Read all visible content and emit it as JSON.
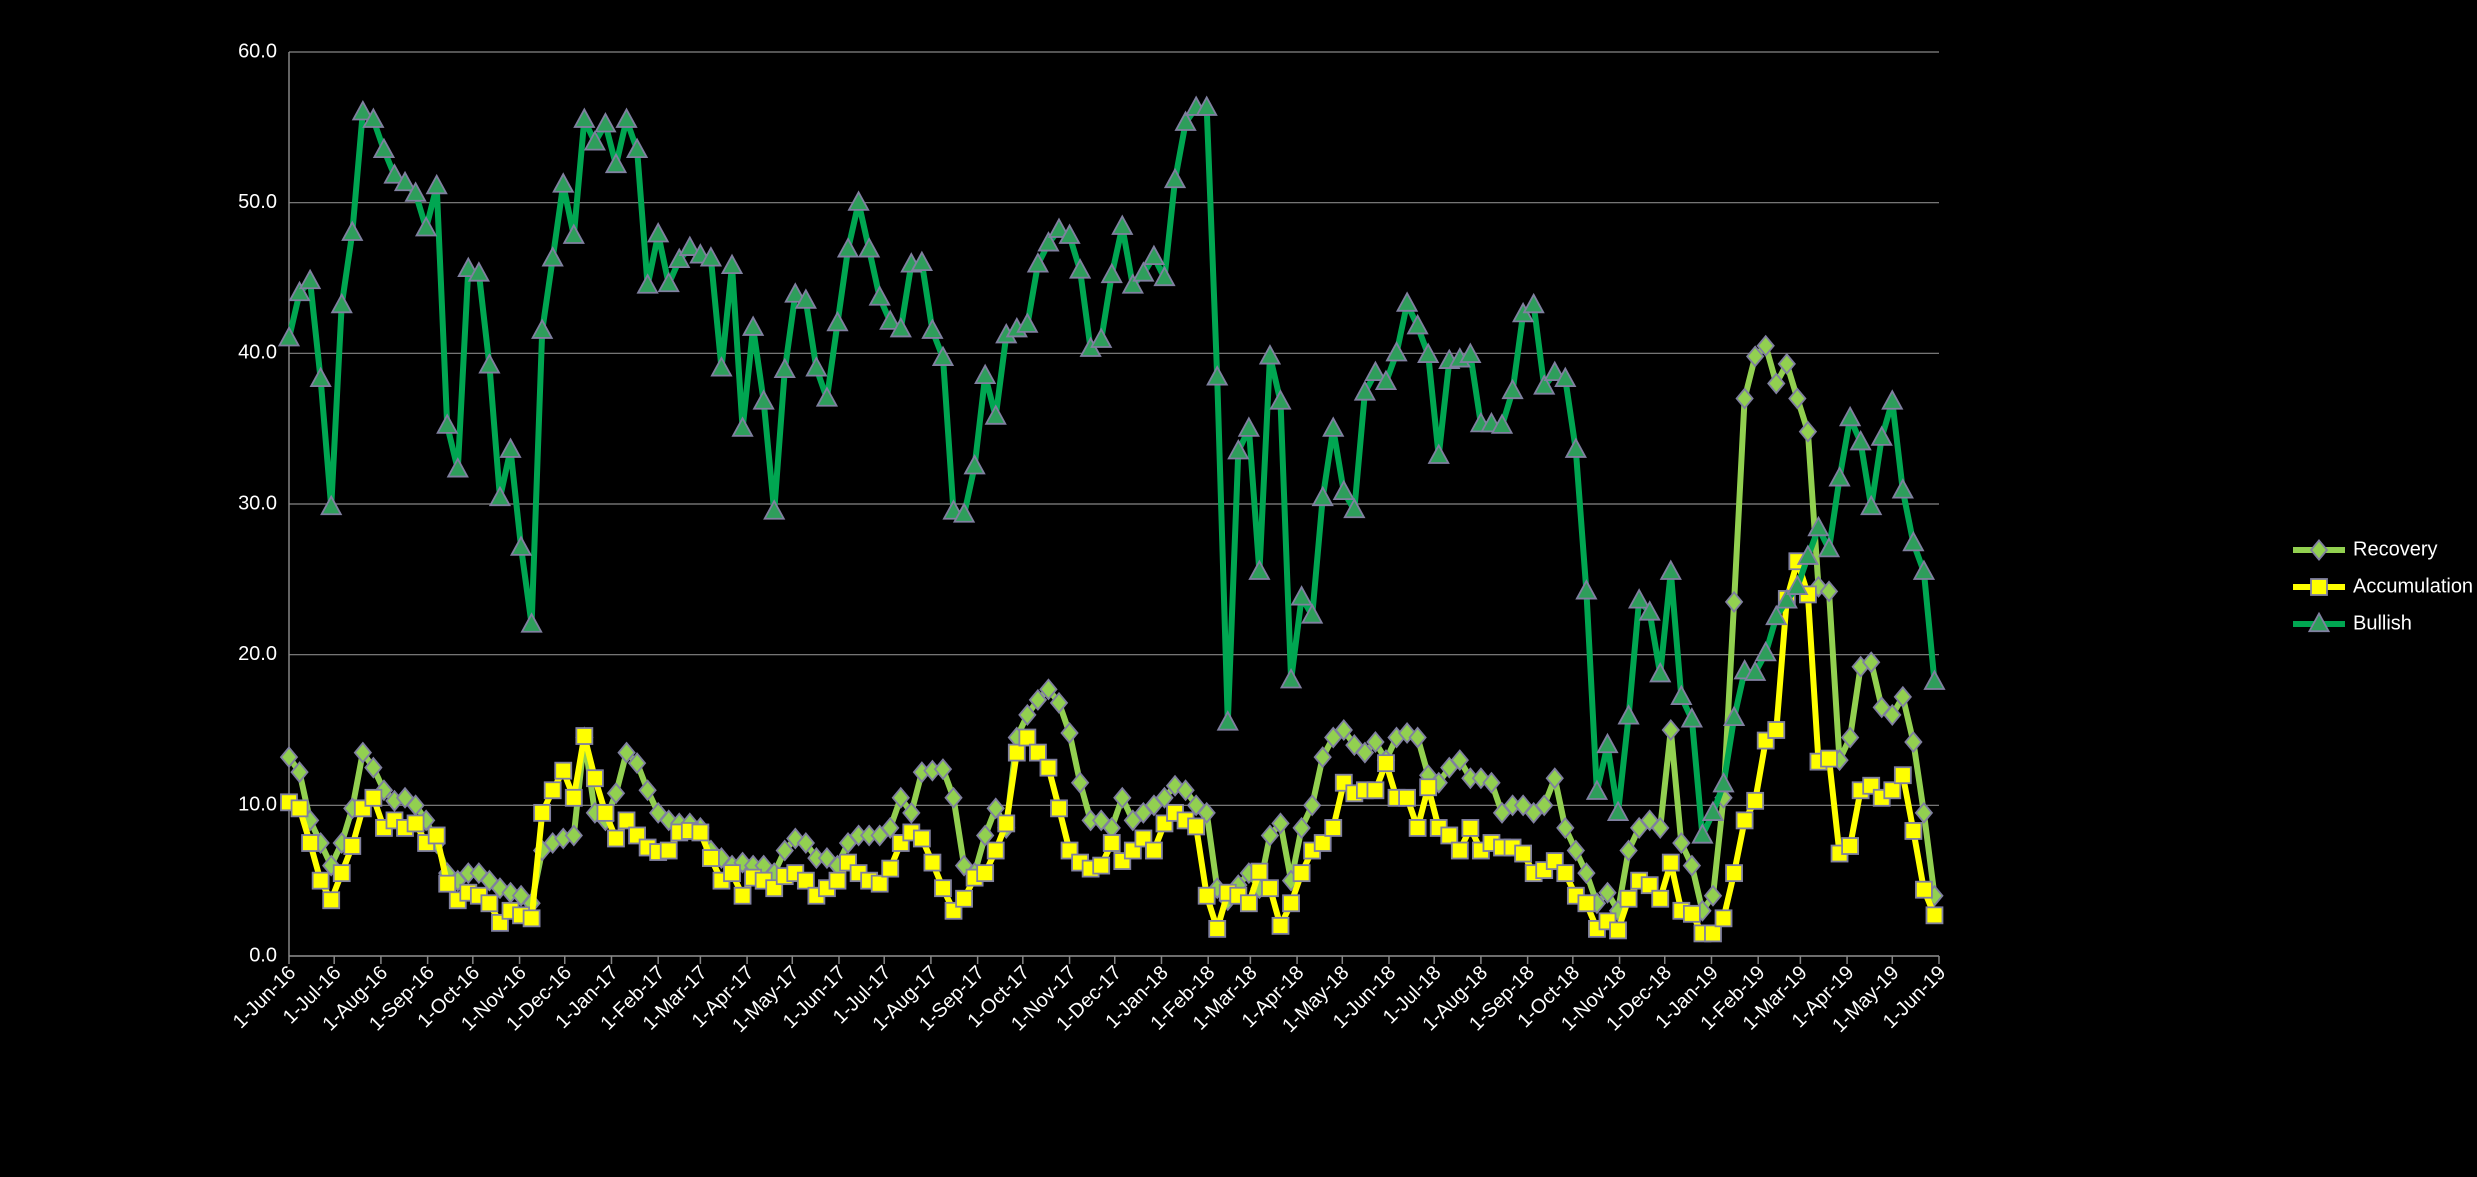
{
  "chart_data": {
    "type": "line",
    "x": [
      "2016-06-01",
      "2016-06-08",
      "2016-06-15",
      "2016-06-22",
      "2016-06-29",
      "2016-07-06",
      "2016-07-13",
      "2016-07-20",
      "2016-07-27",
      "2016-08-03",
      "2016-08-10",
      "2016-08-17",
      "2016-08-24",
      "2016-08-31",
      "2016-09-07",
      "2016-09-14",
      "2016-09-21",
      "2016-09-28",
      "2016-10-05",
      "2016-10-12",
      "2016-10-19",
      "2016-10-26",
      "2016-11-02",
      "2016-11-09",
      "2016-11-16",
      "2016-11-23",
      "2016-11-30",
      "2016-12-07",
      "2016-12-14",
      "2016-12-21",
      "2016-12-28",
      "2017-01-04",
      "2017-01-11",
      "2017-01-18",
      "2017-01-25",
      "2017-02-01",
      "2017-02-08",
      "2017-02-15",
      "2017-02-22",
      "2017-03-01",
      "2017-03-08",
      "2017-03-15",
      "2017-03-22",
      "2017-03-29",
      "2017-04-05",
      "2017-04-12",
      "2017-04-19",
      "2017-04-26",
      "2017-05-03",
      "2017-05-10",
      "2017-05-17",
      "2017-05-24",
      "2017-05-31",
      "2017-06-07",
      "2017-06-14",
      "2017-06-21",
      "2017-06-28",
      "2017-07-05",
      "2017-07-12",
      "2017-07-19",
      "2017-07-26",
      "2017-08-02",
      "2017-08-09",
      "2017-08-16",
      "2017-08-23",
      "2017-08-30",
      "2017-09-06",
      "2017-09-13",
      "2017-09-20",
      "2017-09-27",
      "2017-10-04",
      "2017-10-11",
      "2017-10-18",
      "2017-10-25",
      "2017-11-01",
      "2017-11-08",
      "2017-11-15",
      "2017-11-22",
      "2017-11-29",
      "2017-12-06",
      "2017-12-13",
      "2017-12-20",
      "2017-12-27",
      "2018-01-03",
      "2018-01-10",
      "2018-01-17",
      "2018-01-24",
      "2018-01-31",
      "2018-02-07",
      "2018-02-14",
      "2018-02-21",
      "2018-02-28",
      "2018-03-07",
      "2018-03-14",
      "2018-03-21",
      "2018-03-28",
      "2018-04-04",
      "2018-04-11",
      "2018-04-18",
      "2018-04-25",
      "2018-05-02",
      "2018-05-09",
      "2018-05-16",
      "2018-05-23",
      "2018-05-30",
      "2018-06-06",
      "2018-06-13",
      "2018-06-20",
      "2018-06-27",
      "2018-07-04",
      "2018-07-11",
      "2018-07-18",
      "2018-07-25",
      "2018-08-01",
      "2018-08-08",
      "2018-08-15",
      "2018-08-22",
      "2018-08-29",
      "2018-09-05",
      "2018-09-12",
      "2018-09-19",
      "2018-09-26",
      "2018-10-03",
      "2018-10-10",
      "2018-10-17",
      "2018-10-24",
      "2018-10-31",
      "2018-11-07",
      "2018-11-14",
      "2018-11-21",
      "2018-11-28",
      "2018-12-05",
      "2018-12-12",
      "2018-12-19",
      "2018-12-26",
      "2019-01-02",
      "2019-01-09",
      "2019-01-16",
      "2019-01-23",
      "2019-01-30",
      "2019-02-06",
      "2019-02-13",
      "2019-02-20",
      "2019-02-27",
      "2019-03-06",
      "2019-03-13",
      "2019-03-20",
      "2019-03-27",
      "2019-04-03",
      "2019-04-10",
      "2019-04-17",
      "2019-04-24",
      "2019-05-01",
      "2019-05-08",
      "2019-05-15",
      "2019-05-22",
      "2019-05-29"
    ],
    "series": [
      {
        "name": "Recovery",
        "color": "#92d050",
        "marker": "diamond",
        "values": [
          13.2,
          12.2,
          9,
          7.5,
          6,
          7.5,
          9.8,
          13.5,
          12.5,
          11,
          10.3,
          10.5,
          10,
          9,
          7.5,
          5.5,
          5,
          5.5,
          5.5,
          5,
          4.5,
          4.2,
          4,
          3.5,
          7,
          7.5,
          7.8,
          8,
          14.5,
          9.5,
          9,
          10.8,
          13.5,
          12.8,
          11,
          9.5,
          9,
          8.8,
          8.8,
          8.5,
          7,
          6.5,
          6,
          6.2,
          6,
          6,
          5.5,
          7,
          7.8,
          7.5,
          6.5,
          6.5,
          6,
          7.5,
          8,
          8,
          8,
          8.5,
          10.5,
          9.5,
          12.2,
          12.3,
          12.4,
          10.5,
          6,
          5.5,
          8,
          9.8,
          8.5,
          14.5,
          16,
          17,
          17.7,
          16.8,
          14.8,
          11.5,
          9,
          9,
          8.5,
          10.5,
          9,
          9.5,
          10,
          10.5,
          11.3,
          11,
          10,
          9.5,
          4.5,
          3.7,
          4.7,
          5.5,
          4.5,
          8,
          8.8,
          5,
          8.5,
          10,
          13.2,
          14.5,
          15,
          14,
          13.5,
          14.2,
          13,
          14.5,
          14.8,
          14.5,
          12,
          11.5,
          12.5,
          13,
          11.8,
          11.8,
          11.5,
          9.5,
          10,
          10,
          9.5,
          10,
          11.8,
          8.5,
          7,
          5.5,
          3.5,
          4.2,
          3,
          7,
          8.5,
          9,
          8.5,
          15,
          7.5,
          6,
          3,
          4,
          10.5,
          23.5,
          37,
          39.8,
          40.5,
          38,
          39.3,
          37,
          34.8,
          24.5,
          24.2,
          13,
          14.5,
          19.2,
          19.5,
          16.5,
          16,
          17.2,
          14.2,
          9.5,
          4
        ]
      },
      {
        "name": "Accumulation",
        "color": "#ffff00",
        "marker": "square",
        "values": [
          10.2,
          9.8,
          7.5,
          5,
          3.7,
          5.5,
          7.3,
          9.8,
          10.5,
          8.5,
          9,
          8.5,
          8.8,
          7.5,
          8,
          4.8,
          3.7,
          4.2,
          4,
          3.5,
          2.2,
          3,
          2.7,
          2.5,
          9.5,
          11,
          12.3,
          10.5,
          14.6,
          11.8,
          9.5,
          7.8,
          9,
          8,
          7.2,
          6.9,
          7,
          8.2,
          8.3,
          8.2,
          6.5,
          5,
          5.5,
          4,
          5.2,
          5,
          4.5,
          5.3,
          5.5,
          5,
          4,
          4.5,
          5,
          6.2,
          5.5,
          5,
          4.8,
          5.8,
          7.5,
          8.2,
          7.8,
          6.2,
          4.5,
          3,
          3.8,
          5.2,
          5.5,
          7,
          8.8,
          13.5,
          14.5,
          13.5,
          12.5,
          9.8,
          7,
          6.2,
          5.8,
          6,
          7.5,
          6.3,
          7,
          7.8,
          7,
          8.8,
          9.5,
          9,
          8.6,
          4,
          1.8,
          4.2,
          4,
          3.5,
          5.6,
          4.5,
          2,
          3.5,
          5.5,
          7,
          7.5,
          8.5,
          11.5,
          10.8,
          11,
          11,
          12.8,
          10.5,
          10.5,
          8.5,
          11.2,
          8.5,
          8,
          7,
          8.5,
          7,
          7.5,
          7.2,
          7.2,
          6.8,
          5.5,
          5.7,
          6.3,
          5.5,
          4,
          3.5,
          1.8,
          2.3,
          1.7,
          3.8,
          5,
          4.7,
          3.8,
          6.2,
          3,
          2.8,
          1.5,
          1.5,
          2.5,
          5.5,
          9,
          10.3,
          14.3,
          15,
          23.7,
          26.2,
          24,
          12.9,
          13.1,
          6.8,
          7.3,
          11,
          11.3,
          10.5,
          11,
          12,
          8.3,
          4.4,
          2.7
        ]
      },
      {
        "name": "Bullish",
        "color": "#00a651",
        "marker": "triangle",
        "values": [
          41,
          44,
          44.8,
          38.3,
          29.8,
          43.2,
          48,
          56,
          55.5,
          53.5,
          51.8,
          51.3,
          50.6,
          48.3,
          51.1,
          35.2,
          32.3,
          45.6,
          45.3,
          39.2,
          30.4,
          33.6,
          27.1,
          22,
          41.5,
          46.3,
          51.2,
          47.8,
          55.5,
          54,
          55.2,
          52.5,
          55.5,
          53.5,
          44.5,
          47.9,
          44.6,
          46.2,
          47,
          46.5,
          46.3,
          39,
          45.8,
          35,
          41.7,
          36.8,
          29.5,
          38.9,
          43.9,
          43.5,
          39,
          37,
          42,
          46.9,
          50,
          46.9,
          43.7,
          42.1,
          41.6,
          45.9,
          46,
          41.5,
          39.7,
          29.5,
          29.3,
          32.5,
          38.5,
          35.8,
          41.2,
          41.6,
          41.9,
          45.9,
          47.3,
          48.2,
          47.8,
          45.5,
          40.3,
          40.9,
          45.2,
          48.4,
          44.5,
          45.3,
          46.4,
          45,
          51.5,
          55.3,
          56.3,
          56.3,
          38.4,
          15.5,
          33.5,
          35,
          25.5,
          39.8,
          36.8,
          18.3,
          23.8,
          22.6,
          30.4,
          35,
          30.8,
          29.6,
          37.4,
          38.7,
          38.1,
          40,
          43.3,
          41.8,
          39.9,
          33.2,
          39.5,
          39.6,
          39.9,
          35.3,
          35.3,
          35.2,
          37.5,
          42.6,
          43.2,
          37.8,
          38.7,
          38.3,
          33.6,
          24.2,
          10.9,
          14,
          9.5,
          15.9,
          23.6,
          22.8,
          18.7,
          25.5,
          17.2,
          15.7,
          8,
          9.5,
          11.4,
          15.8,
          18.9,
          18.8,
          20.1,
          22.5,
          23.6,
          24.5,
          26.5,
          28.4,
          27,
          31.7,
          35.7,
          34.1,
          29.8,
          34.4,
          36.8,
          30.9,
          27.4,
          25.5,
          18.2
        ]
      }
    ],
    "ylim": [
      0,
      60
    ],
    "yticks": [
      {
        "value": 0,
        "label": "0.0"
      },
      {
        "value": 10,
        "label": "10.0"
      },
      {
        "value": 20,
        "label": "20.0"
      },
      {
        "value": 30,
        "label": "30.0"
      },
      {
        "value": 40,
        "label": "40.0"
      },
      {
        "value": 50,
        "label": "50.0"
      },
      {
        "value": 60,
        "label": "60.0"
      }
    ],
    "xlim": [
      "2016-06-01",
      "2019-06-01"
    ],
    "xticks": [
      {
        "value": "2016-06-01",
        "label": "1-Jun-16"
      },
      {
        "value": "2016-07-01",
        "label": "1-Jul-16"
      },
      {
        "value": "2016-08-01",
        "label": "1-Aug-16"
      },
      {
        "value": "2016-09-01",
        "label": "1-Sep-16"
      },
      {
        "value": "2016-10-01",
        "label": "1-Oct-16"
      },
      {
        "value": "2016-11-01",
        "label": "1-Nov-16"
      },
      {
        "value": "2016-12-01",
        "label": "1-Dec-16"
      },
      {
        "value": "2017-01-01",
        "label": "1-Jan-17"
      },
      {
        "value": "2017-02-01",
        "label": "1-Feb-17"
      },
      {
        "value": "2017-03-01",
        "label": "1-Mar-17"
      },
      {
        "value": "2017-04-01",
        "label": "1-Apr-17"
      },
      {
        "value": "2017-05-01",
        "label": "1-May-17"
      },
      {
        "value": "2017-06-01",
        "label": "1-Jun-17"
      },
      {
        "value": "2017-07-01",
        "label": "1-Jul-17"
      },
      {
        "value": "2017-08-01",
        "label": "1-Aug-17"
      },
      {
        "value": "2017-09-01",
        "label": "1-Sep-17"
      },
      {
        "value": "2017-10-01",
        "label": "1-Oct-17"
      },
      {
        "value": "2017-11-01",
        "label": "1-Nov-17"
      },
      {
        "value": "2017-12-01",
        "label": "1-Dec-17"
      },
      {
        "value": "2018-01-01",
        "label": "1-Jan-18"
      },
      {
        "value": "2018-02-01",
        "label": "1-Feb-18"
      },
      {
        "value": "2018-03-01",
        "label": "1-Mar-18"
      },
      {
        "value": "2018-04-01",
        "label": "1-Apr-18"
      },
      {
        "value": "2018-05-01",
        "label": "1-May-18"
      },
      {
        "value": "2018-06-01",
        "label": "1-Jun-18"
      },
      {
        "value": "2018-07-01",
        "label": "1-Jul-18"
      },
      {
        "value": "2018-08-01",
        "label": "1-Aug-18"
      },
      {
        "value": "2018-09-01",
        "label": "1-Sep-18"
      },
      {
        "value": "2018-10-01",
        "label": "1-Oct-18"
      },
      {
        "value": "2018-11-01",
        "label": "1-Nov-18"
      },
      {
        "value": "2018-12-01",
        "label": "1-Dec-18"
      },
      {
        "value": "2019-01-01",
        "label": "1-Jan-19"
      },
      {
        "value": "2019-02-01",
        "label": "1-Feb-19"
      },
      {
        "value": "2019-03-01",
        "label": "1-Mar-19"
      },
      {
        "value": "2019-04-01",
        "label": "1-Apr-19"
      },
      {
        "value": "2019-05-01",
        "label": "1-May-19"
      },
      {
        "value": "2019-06-01",
        "label": "1-Jun-19"
      }
    ],
    "grid": true,
    "legend": "right"
  }
}
